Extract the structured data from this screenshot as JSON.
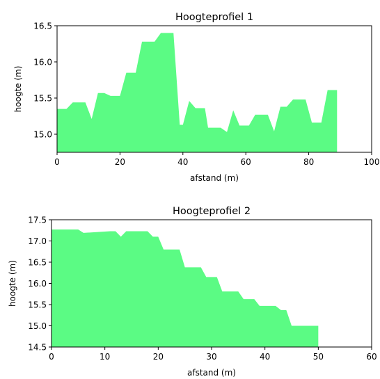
{
  "chart_data": [
    {
      "type": "area",
      "title": "Hoogteprofiel 1",
      "xlabel": "afstand (m)",
      "ylabel": "hoogte (m)",
      "xlim": [
        0,
        100
      ],
      "ylim": [
        14.75,
        16.5
      ],
      "xticks": [
        0,
        20,
        40,
        60,
        80,
        100
      ],
      "xtick_labels": [
        "0",
        "20",
        "40",
        "60",
        "80",
        "100"
      ],
      "yticks": [
        15.0,
        15.5,
        16.0,
        16.5
      ],
      "ytick_labels": [
        "15.0",
        "15.5",
        "16.0",
        "16.5"
      ],
      "color": "#5bfb84",
      "grid": false,
      "x": [
        0,
        3,
        5,
        9,
        11,
        13,
        15,
        17,
        20,
        22,
        25,
        27,
        31,
        33,
        37,
        39,
        40,
        42,
        44,
        47,
        48,
        52,
        54,
        56,
        58,
        61,
        63,
        67,
        69,
        71,
        73,
        75,
        79,
        81,
        84,
        86,
        89
      ],
      "y": [
        15.35,
        15.35,
        15.44,
        15.44,
        15.21,
        15.57,
        15.57,
        15.53,
        15.53,
        15.85,
        15.85,
        16.28,
        16.28,
        16.4,
        16.4,
        15.13,
        15.13,
        15.46,
        15.36,
        15.36,
        15.09,
        15.09,
        15.03,
        15.33,
        15.12,
        15.12,
        15.27,
        15.27,
        15.04,
        15.38,
        15.38,
        15.48,
        15.48,
        15.16,
        15.16,
        15.61,
        15.61
      ]
    },
    {
      "type": "area",
      "title": "Hoogteprofiel 2",
      "xlabel": "afstand (m)",
      "ylabel": "hoogte (m)",
      "xlim": [
        0,
        60
      ],
      "ylim": [
        14.5,
        17.5
      ],
      "xticks": [
        0,
        10,
        20,
        30,
        40,
        50,
        60
      ],
      "xtick_labels": [
        "0",
        "10",
        "20",
        "30",
        "40",
        "50",
        "60"
      ],
      "yticks": [
        14.5,
        15.0,
        15.5,
        16.0,
        16.5,
        17.0,
        17.5
      ],
      "ytick_labels": [
        "14.5",
        "15.0",
        "15.5",
        "16.0",
        "16.5",
        "17.0",
        "17.5"
      ],
      "color": "#5bfb84",
      "grid": false,
      "x": [
        0,
        5,
        6,
        11,
        12,
        13,
        14,
        18,
        19,
        20,
        21,
        24,
        25,
        28,
        29,
        31,
        32,
        35,
        36,
        38,
        39,
        42,
        43,
        44,
        45,
        48,
        50
      ],
      "y": [
        17.27,
        17.27,
        17.19,
        17.23,
        17.23,
        17.1,
        17.23,
        17.23,
        17.1,
        17.1,
        16.8,
        16.8,
        16.38,
        16.38,
        16.15,
        16.15,
        15.81,
        15.81,
        15.63,
        15.63,
        15.47,
        15.47,
        15.37,
        15.37,
        15.0,
        15.0,
        15.0
      ]
    }
  ]
}
